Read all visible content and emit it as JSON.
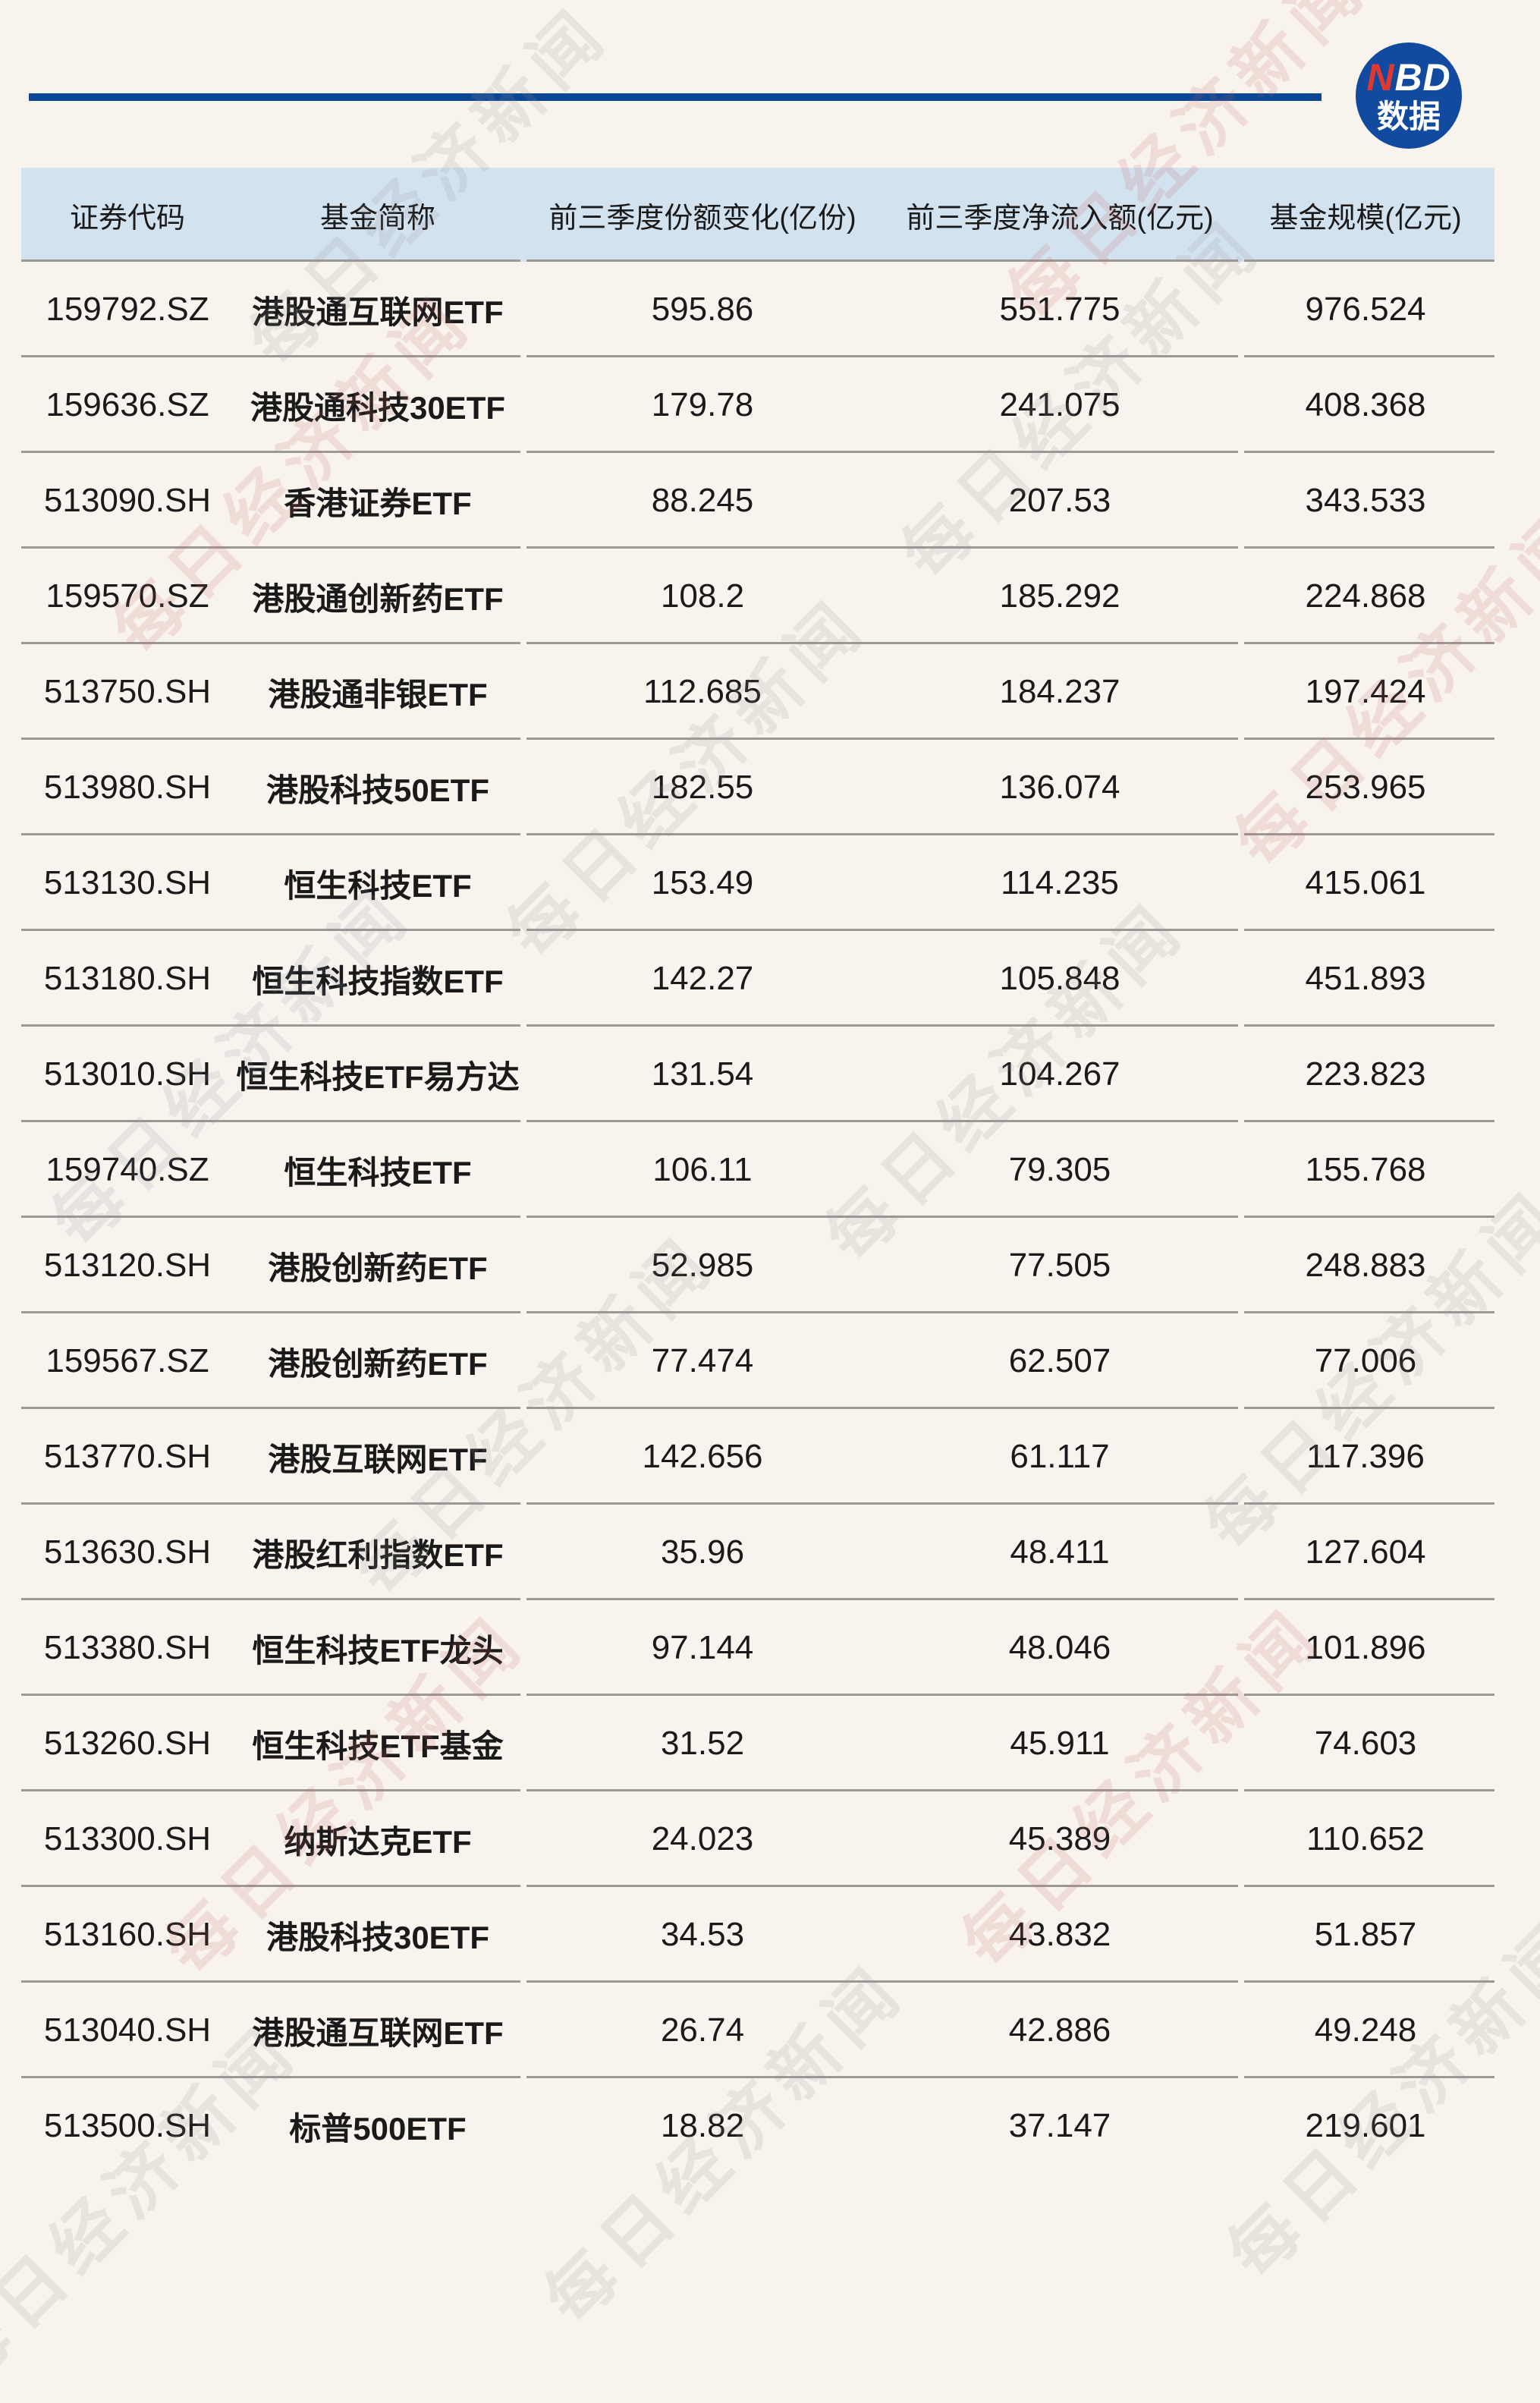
{
  "logo": {
    "n": "N",
    "bd": "BD",
    "subtitle": "数据",
    "accent_red": "#e03a2f",
    "navy": "#114a9f"
  },
  "colors": {
    "background": "#f8f3ec",
    "header_bg": "#d3e2ef",
    "divider": "#9c9995",
    "rule_navy": "#0b4796",
    "text": "#1a1a1a"
  },
  "watermark": {
    "text": "每日经济新闻"
  },
  "chart_data": {
    "type": "table",
    "columns": [
      "证券代码",
      "基金简称",
      "前三季度份额变化(亿份)",
      "前三季度净流入额(亿元)",
      "基金规模(亿元)"
    ],
    "rows": [
      [
        "159792.SZ",
        "港股通互联网ETF",
        "595.86",
        "551.775",
        "976.524"
      ],
      [
        "159636.SZ",
        "港股通科技30ETF",
        "179.78",
        "241.075",
        "408.368"
      ],
      [
        "513090.SH",
        "香港证券ETF",
        "88.245",
        "207.53",
        "343.533"
      ],
      [
        "159570.SZ",
        "港股通创新药ETF",
        "108.2",
        "185.292",
        "224.868"
      ],
      [
        "513750.SH",
        "港股通非银ETF",
        "112.685",
        "184.237",
        "197.424"
      ],
      [
        "513980.SH",
        "港股科技50ETF",
        "182.55",
        "136.074",
        "253.965"
      ],
      [
        "513130.SH",
        "恒生科技ETF",
        "153.49",
        "114.235",
        "415.061"
      ],
      [
        "513180.SH",
        "恒生科技指数ETF",
        "142.27",
        "105.848",
        "451.893"
      ],
      [
        "513010.SH",
        "恒生科技ETF易方达",
        "131.54",
        "104.267",
        "223.823"
      ],
      [
        "159740.SZ",
        "恒生科技ETF",
        "106.11",
        "79.305",
        "155.768"
      ],
      [
        "513120.SH",
        "港股创新药ETF",
        "52.985",
        "77.505",
        "248.883"
      ],
      [
        "159567.SZ",
        "港股创新药ETF",
        "77.474",
        "62.507",
        "77.006"
      ],
      [
        "513770.SH",
        "港股互联网ETF",
        "142.656",
        "61.117",
        "117.396"
      ],
      [
        "513630.SH",
        "港股红利指数ETF",
        "35.96",
        "48.411",
        "127.604"
      ],
      [
        "513380.SH",
        "恒生科技ETF龙头",
        "97.144",
        "48.046",
        "101.896"
      ],
      [
        "513260.SH",
        "恒生科技ETF基金",
        "31.52",
        "45.911",
        "74.603"
      ],
      [
        "513300.SH",
        "纳斯达克ETF",
        "24.023",
        "45.389",
        "110.652"
      ],
      [
        "513160.SH",
        "港股科技30ETF",
        "34.53",
        "43.832",
        "51.857"
      ],
      [
        "513040.SH",
        "港股通互联网ETF",
        "26.74",
        "42.886",
        "49.248"
      ],
      [
        "513500.SH",
        "标普500ETF",
        "18.82",
        "37.147",
        "219.601"
      ]
    ]
  }
}
